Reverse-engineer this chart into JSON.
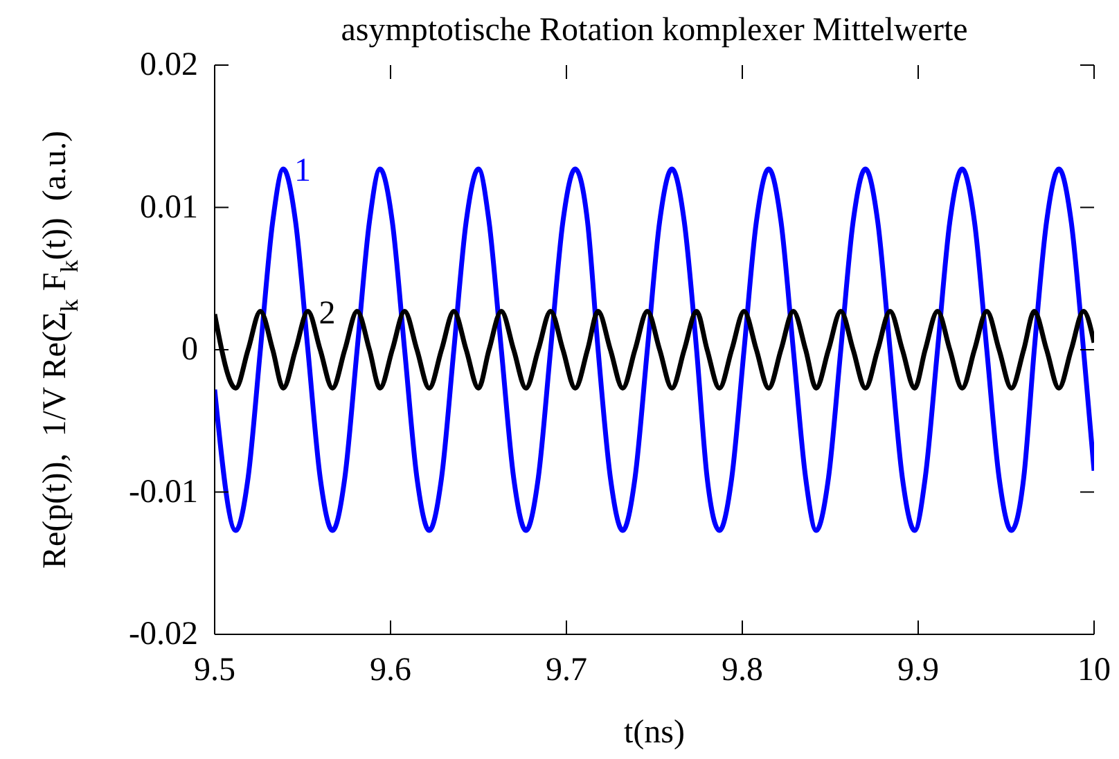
{
  "chart_data": {
    "type": "line",
    "title": "asymptotische Rotation komplexer Mittelwerte",
    "xlabel": "t(ns)",
    "ylabel": "Re(p(t)),  1/V Re(Σ$_{k}$ F$_{k}$(t))  (a.u.)",
    "x": [
      9.5,
      9.512,
      9.519,
      9.526,
      9.533,
      9.539,
      9.546,
      9.553,
      9.56,
      9.567,
      9.574,
      9.581,
      9.588,
      9.594,
      9.601,
      9.608,
      9.615,
      9.622,
      9.629,
      9.636,
      9.643,
      9.65,
      9.656,
      9.663,
      9.67,
      9.677,
      9.684,
      9.691,
      9.698,
      9.705,
      9.712,
      9.718,
      9.725,
      9.732,
      9.739,
      9.746,
      9.753,
      9.76,
      9.767,
      9.774,
      9.78,
      9.787,
      9.794,
      9.801,
      9.808,
      9.815,
      9.822,
      9.829,
      9.836,
      9.842,
      9.849,
      9.856,
      9.863,
      9.87,
      9.877,
      9.884,
      9.891,
      9.898,
      9.904,
      9.911,
      9.918,
      9.925,
      9.932,
      9.939,
      9.946,
      9.953,
      9.96,
      9.966,
      9.973,
      9.98,
      9.987,
      9.994,
      10
    ],
    "series": [
      {
        "name": "1",
        "color": "#0000ff",
        "values": [
          -0.0028,
          -0.0127,
          -0.009,
          0,
          0.009,
          0.0127,
          0.009,
          0,
          -0.009,
          -0.0127,
          -0.009,
          0,
          0.009,
          0.0127,
          0.009,
          0,
          -0.009,
          -0.0127,
          -0.009,
          0,
          0.009,
          0.0127,
          0.009,
          0,
          -0.009,
          -0.0127,
          -0.009,
          0,
          0.009,
          0.0127,
          0.009,
          0,
          -0.009,
          -0.0127,
          -0.009,
          0,
          0.009,
          0.0127,
          0.009,
          0,
          -0.009,
          -0.0127,
          -0.009,
          0,
          0.009,
          0.0127,
          0.009,
          0,
          -0.009,
          -0.0127,
          -0.009,
          0,
          0.009,
          0.0127,
          0.009,
          0,
          -0.009,
          -0.0127,
          -0.009,
          0,
          0.009,
          0.0127,
          0.009,
          0,
          -0.009,
          -0.0127,
          -0.009,
          0,
          0.009,
          0.0127,
          0.009,
          0,
          -0.0085
        ]
      },
      {
        "name": "2",
        "color": "#000000",
        "values": [
          0.0025,
          -0.0027,
          0,
          0.0027,
          0,
          -0.0027,
          0,
          0.0027,
          0,
          -0.0027,
          0,
          0.0027,
          0,
          -0.0027,
          0,
          0.0027,
          0,
          -0.0027,
          0,
          0.0027,
          0,
          -0.0027,
          0,
          0.0027,
          0,
          -0.0027,
          0,
          0.0027,
          0,
          -0.0027,
          0,
          0.0027,
          0,
          -0.0027,
          0,
          0.0027,
          0,
          -0.0027,
          0,
          0.0027,
          0,
          -0.0027,
          0,
          0.0027,
          0,
          -0.0027,
          0,
          0.0027,
          0,
          -0.0027,
          0,
          0.0027,
          0,
          -0.0027,
          0,
          0.0027,
          0,
          -0.0027,
          0,
          0.0027,
          0,
          -0.0027,
          0,
          0.0027,
          0,
          -0.0027,
          0,
          0.0027,
          0,
          -0.0027,
          0,
          0.0027,
          0.0005
        ]
      }
    ],
    "xlim": [
      9.5,
      10
    ],
    "xticks": [
      9.5,
      9.6,
      9.7,
      9.8,
      9.9,
      10
    ],
    "ylim": [
      -0.02,
      0.02
    ],
    "yticks": [
      -0.02,
      -0.01,
      0,
      0.01,
      0.02
    ],
    "grid": false,
    "marker": "none",
    "line_style": "solid"
  }
}
